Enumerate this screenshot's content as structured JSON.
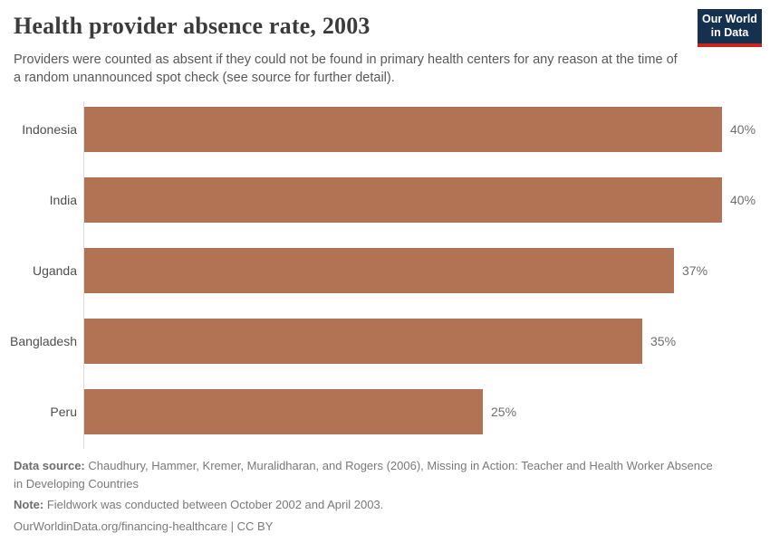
{
  "header": {
    "title": "Health provider absence rate, 2003",
    "subtitle": "Providers were counted as absent if they could not be found in primary health centers for any reason at the time of a random unannounced spot check (see source for further detail).",
    "logo": {
      "line1": "Our World",
      "line2": "in Data"
    }
  },
  "chart_data": {
    "type": "bar",
    "orientation": "horizontal",
    "title": "Health provider absence rate, 2003",
    "categories": [
      "Indonesia",
      "India",
      "Uganda",
      "Bangladesh",
      "Peru"
    ],
    "values": [
      40,
      40,
      37,
      35,
      25
    ],
    "value_labels": [
      "40%",
      "40%",
      "37%",
      "35%",
      "25%"
    ],
    "unit": "%",
    "xlim": [
      0,
      40
    ],
    "grid": false,
    "legend": "none",
    "bar_color": "#b17353"
  },
  "footer": {
    "data_source_label": "Data source:",
    "data_source_text": " Chaudhury, Hammer, Kremer, Muralidharan, and Rogers (2006), Missing in Action: Teacher and Health Worker Absence in Developing Countries",
    "note_label": "Note:",
    "note_text": " Fieldwork was conducted between October 2002 and April 2003.",
    "link_text": "OurWorldinData.org/financing-healthcare",
    "separator": " | ",
    "license_text": "CC BY"
  },
  "colors": {
    "bar": "#b17353",
    "logo_background": "#16304f",
    "logo_stripe": "#c9241d",
    "title_text": "#3b3b3b",
    "subtitle_text": "#595959",
    "label_text": "#4e4e4e",
    "value_text": "#6e6e6e",
    "footer_text": "#7a7a7a",
    "axis_line": "#dcdcdc"
  }
}
